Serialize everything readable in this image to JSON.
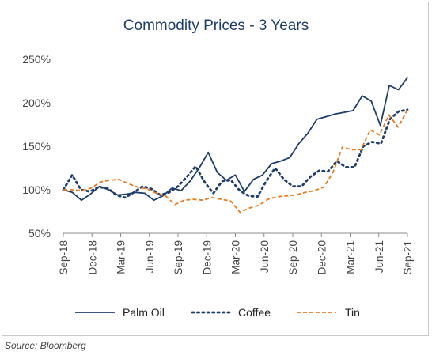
{
  "chart_data": {
    "type": "line",
    "title": "Commodity Prices - 3 Years",
    "source": "Source: Bloomberg",
    "ylim": [
      50,
      250
    ],
    "yticks": [
      50,
      100,
      150,
      200,
      250
    ],
    "ytick_labels": [
      "50%",
      "100%",
      "150%",
      "200%",
      "250%"
    ],
    "x_range": [
      0,
      36
    ],
    "xticks": [
      {
        "x": 0,
        "label": "Sep-18"
      },
      {
        "x": 3,
        "label": "Dec-18"
      },
      {
        "x": 6,
        "label": "Mar-19"
      },
      {
        "x": 9,
        "label": "Jun-19"
      },
      {
        "x": 12,
        "label": "Sep-19"
      },
      {
        "x": 15,
        "label": "Dec-19"
      },
      {
        "x": 18,
        "label": "Mar-20"
      },
      {
        "x": 21,
        "label": "Jun-20"
      },
      {
        "x": 24,
        "label": "Sep-20"
      },
      {
        "x": 27,
        "label": "Dec-20"
      },
      {
        "x": 30,
        "label": "Mar-21"
      },
      {
        "x": 33,
        "label": "Jun-21"
      },
      {
        "x": 36,
        "label": "Sep-21"
      }
    ],
    "grid": false,
    "legend_position": "bottom",
    "series": [
      {
        "name": "Palm Oil",
        "color": "#1f3d6b",
        "style": "solid",
        "values": [
          100,
          97,
          88,
          95,
          104,
          100,
          94,
          95,
          97,
          96,
          88,
          93,
          102,
          99,
          110,
          125,
          143,
          120,
          111,
          117,
          98,
          112,
          117,
          130,
          133,
          137,
          153,
          165,
          181,
          184,
          187,
          189,
          191,
          208,
          202,
          174,
          220,
          215,
          229
        ]
      },
      {
        "name": "Coffee",
        "color": "#1f3d6b",
        "style": "dotted",
        "values": [
          100,
          117,
          100,
          98,
          103,
          102,
          94,
          91,
          97,
          104,
          101,
          94,
          97,
          104,
          115,
          127,
          109,
          96,
          110,
          111,
          99,
          93,
          92,
          110,
          125,
          112,
          104,
          104,
          115,
          122,
          121,
          133,
          126,
          126,
          150,
          155,
          153,
          181,
          190,
          192
        ]
      },
      {
        "name": "Tin",
        "color": "#e87a1e",
        "style": "dashed",
        "values": [
          100,
          100,
          99,
          102,
          109,
          111,
          112,
          107,
          103,
          101,
          96,
          93,
          83,
          88,
          89,
          88,
          91,
          89,
          87,
          74,
          79,
          82,
          89,
          92,
          93,
          94,
          97,
          99,
          103,
          120,
          149,
          146,
          146,
          169,
          163,
          186,
          172,
          192
        ]
      }
    ]
  }
}
